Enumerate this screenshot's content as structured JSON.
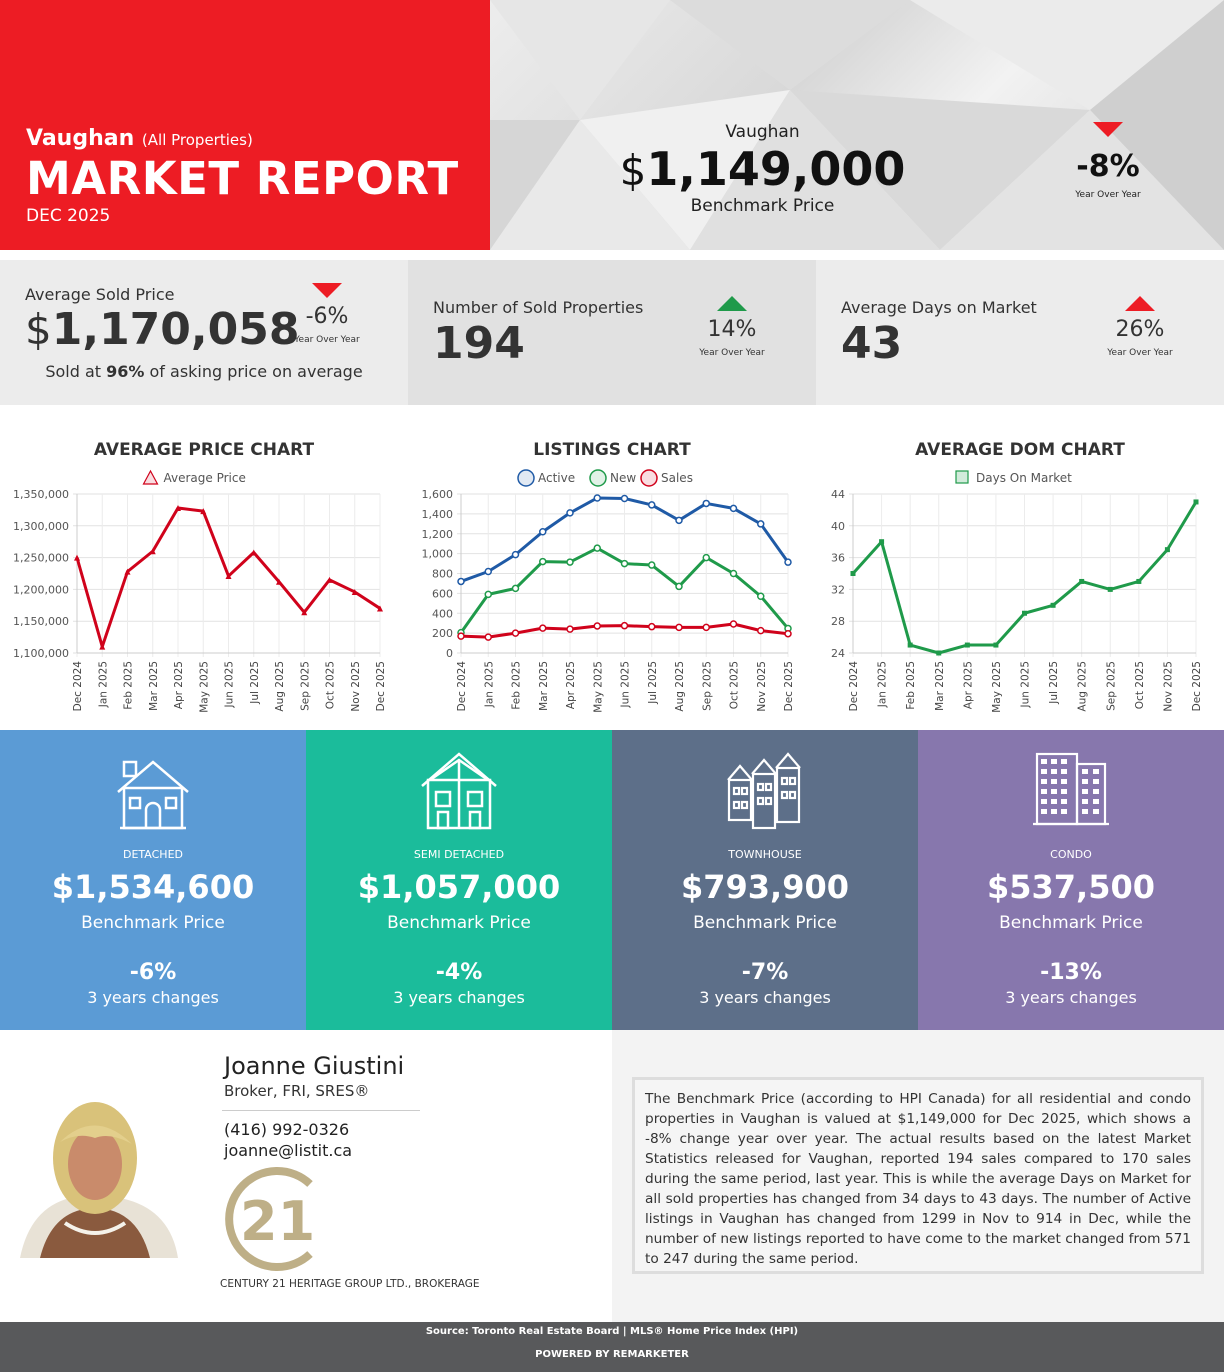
{
  "header": {
    "city": "Vaughan",
    "city_qualifier": "(All Properties)",
    "title": "MARKET REPORT",
    "date": "DEC 2025",
    "brand_red": "#ed1c24"
  },
  "benchmark": {
    "city": "Vaughan",
    "currency": "$",
    "price": "1,149,000",
    "label": "Benchmark Price",
    "change": "-8%",
    "change_label": "Year Over Year",
    "direction": "down"
  },
  "stats": [
    {
      "label": "Average Sold Price",
      "currency": "$",
      "value": "1,170,058",
      "change": "-6%",
      "change_label": "Year Over Year",
      "direction": "down",
      "note_prefix": "Sold at ",
      "note_bold": "96%",
      "note_suffix": " of asking price on average"
    },
    {
      "label": "Number of Sold Properties",
      "value": "194",
      "change": "14%",
      "change_label": "Year Over Year",
      "direction": "up"
    },
    {
      "label": "Average Days on Market",
      "value": "43",
      "change": "26%",
      "change_label": "Year Over Year",
      "direction": "up"
    }
  ],
  "chart_data": [
    {
      "type": "line",
      "title": "AVERAGE PRICE CHART",
      "categories": [
        "Dec 2024",
        "Jan 2025",
        "Feb 2025",
        "Mar 2025",
        "Apr 2025",
        "May 2025",
        "Jun 2025",
        "Jul 2025",
        "Aug 2025",
        "Sep 2025",
        "Oct 2025",
        "Nov 2025",
        "Dec 2025"
      ],
      "series": [
        {
          "name": "Average Price",
          "color": "#d0021b",
          "marker": "triangle",
          "values": [
            1250000,
            1110000,
            1228000,
            1260000,
            1328000,
            1323000,
            1221000,
            1258000,
            1212000,
            1164000,
            1215000,
            1196000,
            1170058
          ]
        }
      ],
      "yticks": [
        "1,100,000",
        "1,150,000",
        "1,200,000",
        "1,250,000",
        "1,300,000",
        "1,350,000"
      ],
      "ylim": [
        1100000,
        1350000
      ]
    },
    {
      "type": "line",
      "title": "LISTINGS CHART",
      "categories": [
        "Dec 2024",
        "Jan 2025",
        "Feb 2025",
        "Mar 2025",
        "Apr 2025",
        "May 2025",
        "Jun 2025",
        "Jul 2025",
        "Aug 2025",
        "Sep 2025",
        "Oct 2025",
        "Nov 2025",
        "Dec 2025"
      ],
      "series": [
        {
          "name": "Active",
          "color": "#1f5aa6",
          "values": [
            720,
            820,
            990,
            1220,
            1410,
            1560,
            1555,
            1490,
            1335,
            1505,
            1455,
            1299,
            914
          ]
        },
        {
          "name": "New",
          "color": "#1f9a4a",
          "values": [
            205,
            590,
            650,
            920,
            915,
            1055,
            900,
            885,
            670,
            960,
            800,
            571,
            247
          ]
        },
        {
          "name": "Sales",
          "color": "#d0021b",
          "values": [
            170,
            160,
            200,
            250,
            240,
            272,
            275,
            265,
            258,
            258,
            292,
            225,
            194
          ]
        }
      ],
      "yticks": [
        "0",
        "200",
        "400",
        "600",
        "800",
        "1,000",
        "1,200",
        "1,400",
        "1,600"
      ],
      "ylim": [
        0,
        1600
      ]
    },
    {
      "type": "line",
      "title": "AVERAGE DOM CHART",
      "categories": [
        "Dec 2024",
        "Jan 2025",
        "Feb 2025",
        "Mar 2025",
        "Apr 2025",
        "May 2025",
        "Jun 2025",
        "Jul 2025",
        "Aug 2025",
        "Sep 2025",
        "Oct 2025",
        "Nov 2025",
        "Dec 2025"
      ],
      "series": [
        {
          "name": "Days On Market",
          "color": "#1f9a4a",
          "marker": "square",
          "values": [
            34,
            38,
            25,
            24,
            25,
            25,
            29,
            30,
            33,
            32,
            33,
            37,
            43
          ]
        }
      ],
      "yticks": [
        "24",
        "28",
        "32",
        "36",
        "40",
        "44"
      ],
      "ylim": [
        24,
        44
      ]
    }
  ],
  "property_types": [
    {
      "type": "DETACHED",
      "price": "$1,534,600",
      "label": "Benchmark Price",
      "change": "-6%",
      "change_label": "3 years changes",
      "color": "#5b9bd5",
      "icon": "house-icon"
    },
    {
      "type": "SEMI DETACHED",
      "price": "$1,057,000",
      "label": "Benchmark Price",
      "change": "-4%",
      "change_label": "3 years changes",
      "color": "#1bbc9b",
      "icon": "semi-detached-icon"
    },
    {
      "type": "TOWNHOUSE",
      "price": "$793,900",
      "label": "Benchmark Price",
      "change": "-7%",
      "change_label": "3 years changes",
      "color": "#5d6f89",
      "icon": "townhouse-icon"
    },
    {
      "type": "CONDO",
      "price": "$537,500",
      "label": "Benchmark Price",
      "change": "-13%",
      "change_label": "3 years changes",
      "color": "#8777ad",
      "icon": "condo-icon"
    }
  ],
  "agent": {
    "name": "Joanne Giustini",
    "title": "Broker, FRI, SRES®",
    "phone": "(416) 992-0326",
    "email": "joanne@listit.ca",
    "logo_text": "21",
    "brokerage": "CENTURY 21 HERITAGE GROUP LTD., BROKERAGE"
  },
  "description": "The Benchmark Price (according to HPI Canada) for all residential and condo properties in Vaughan is valued at $1,149,000 for Dec 2025, which shows a -8% change year over year. The actual results based on the latest Market Statistics released for Vaughan, reported 194 sales compared to 170 sales during the same period, last year. This is while the average Days on Market for all sold properties has changed from 34 days to 43 days. The number of Active listings in Vaughan has changed from 1299 in Nov to 914 in Dec, while the number of new listings reported to have come to the market changed from 571 to 247 during the same period.",
  "footer": {
    "source": "Source: Toronto Real Estate Board | MLS® Home Price Index (HPI)",
    "powered": "POWERED BY REMARKETER"
  }
}
